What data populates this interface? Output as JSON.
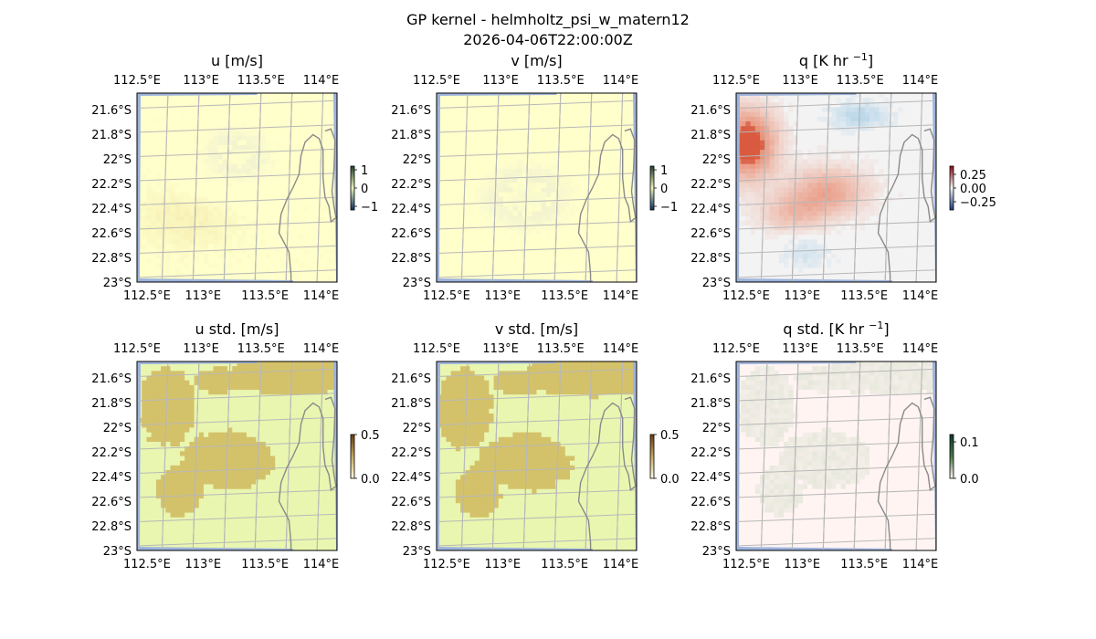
{
  "figure": {
    "title_line1": "GP kernel - helmholtz_psi_w_matern12",
    "title_line2": "2026-04-06T22:00:00Z"
  },
  "colors": {
    "ocean": "#9db3dd",
    "land_yellow": "#ffffcc",
    "land_green": "#e9f6b0",
    "std_brown": "#d4c26a",
    "neutral_grey": "#f3f3f3",
    "neutral_blush": "#fff4f2",
    "diverging_warm": "#e8866a",
    "diverging_cool": "#bcd8ea",
    "coast": "#8a8a8a",
    "grid": "#b8b8b8"
  },
  "chart_data": [
    {
      "type": "heatmap",
      "title": "u [m/s]",
      "xticks": [
        "112.5°E",
        "113°E",
        "113.5°E",
        "114°E"
      ],
      "yticks": [
        "21.6°S",
        "21.8°S",
        "22°S",
        "22.2°S",
        "22.4°S",
        "22.6°S",
        "22.8°S",
        "23°S"
      ],
      "xlim": [
        112.5,
        114.2
      ],
      "ylim": [
        -23.0,
        -21.5
      ],
      "colorbar": {
        "ticks": [
          "1",
          "0",
          "−1"
        ],
        "values": [
          1,
          0,
          -1
        ],
        "range": [
          -1.2,
          1.2
        ]
      },
      "field": "u",
      "grid": true
    },
    {
      "type": "heatmap",
      "title": "v [m/s]",
      "xticks": [
        "112.5°E",
        "113°E",
        "113.5°E",
        "114°E"
      ],
      "yticks": [
        "21.6°S",
        "21.8°S",
        "22°S",
        "22.2°S",
        "22.4°S",
        "22.6°S",
        "22.8°S",
        "23°S"
      ],
      "xlim": [
        112.5,
        114.2
      ],
      "ylim": [
        -23.0,
        -21.5
      ],
      "colorbar": {
        "ticks": [
          "1",
          "0",
          "−1"
        ],
        "values": [
          1,
          0,
          -1
        ],
        "range": [
          -1.2,
          1.2
        ]
      },
      "field": "v",
      "grid": true
    },
    {
      "type": "heatmap",
      "title_main": "q [K hr ",
      "title_exp": "−1",
      "title_end": "]",
      "xticks": [
        "112.5°E",
        "113°E",
        "113.5°E",
        "114°E"
      ],
      "yticks": [
        "21.6°S",
        "21.8°S",
        "22°S",
        "22.2°S",
        "22.4°S",
        "22.6°S",
        "22.8°S",
        "23°S"
      ],
      "xlim": [
        112.5,
        114.2
      ],
      "ylim": [
        -23.0,
        -21.5
      ],
      "colorbar": {
        "ticks": [
          "0.25",
          "0.00",
          "−0.25"
        ],
        "values": [
          0.25,
          0.0,
          -0.25
        ],
        "range": [
          -0.4,
          0.4
        ]
      },
      "field": "q",
      "grid": true
    },
    {
      "type": "heatmap",
      "title": "u std. [m/s]",
      "xticks": [
        "112.5°E",
        "113°E",
        "113.5°E",
        "114°E"
      ],
      "yticks": [
        "21.6°S",
        "21.8°S",
        "22°S",
        "22.2°S",
        "22.4°S",
        "22.6°S",
        "22.8°S",
        "23°S"
      ],
      "xlim": [
        112.5,
        114.2
      ],
      "ylim": [
        -23.0,
        -21.5
      ],
      "colorbar": {
        "ticks": [
          "0.5",
          "0.0"
        ],
        "values": [
          0.5,
          0.0
        ],
        "range": [
          0.0,
          0.5
        ]
      },
      "field": "ustd",
      "grid": true
    },
    {
      "type": "heatmap",
      "title": "v std. [m/s]",
      "xticks": [
        "112.5°E",
        "113°E",
        "113.5°E",
        "114°E"
      ],
      "yticks": [
        "21.6°S",
        "21.8°S",
        "22°S",
        "22.2°S",
        "22.4°S",
        "22.6°S",
        "22.8°S",
        "23°S"
      ],
      "xlim": [
        112.5,
        114.2
      ],
      "ylim": [
        -23.0,
        -21.5
      ],
      "colorbar": {
        "ticks": [
          "0.5",
          "0.0"
        ],
        "values": [
          0.5,
          0.0
        ],
        "range": [
          0.0,
          0.5
        ]
      },
      "field": "vstd",
      "grid": true
    },
    {
      "type": "heatmap",
      "title_main": "q std. [K hr ",
      "title_exp": "−1",
      "title_end": "]",
      "xticks": [
        "112.5°E",
        "113°E",
        "113.5°E",
        "114°E"
      ],
      "yticks": [
        "21.6°S",
        "21.8°S",
        "22°S",
        "22.2°S",
        "22.4°S",
        "22.6°S",
        "22.8°S",
        "23°S"
      ],
      "xlim": [
        112.5,
        114.2
      ],
      "ylim": [
        -23.0,
        -21.5
      ],
      "colorbar": {
        "ticks": [
          "0.1",
          "0.0"
        ],
        "values": [
          0.1,
          0.0
        ],
        "range": [
          0.0,
          0.12
        ]
      },
      "field": "qstd",
      "grid": true
    }
  ]
}
